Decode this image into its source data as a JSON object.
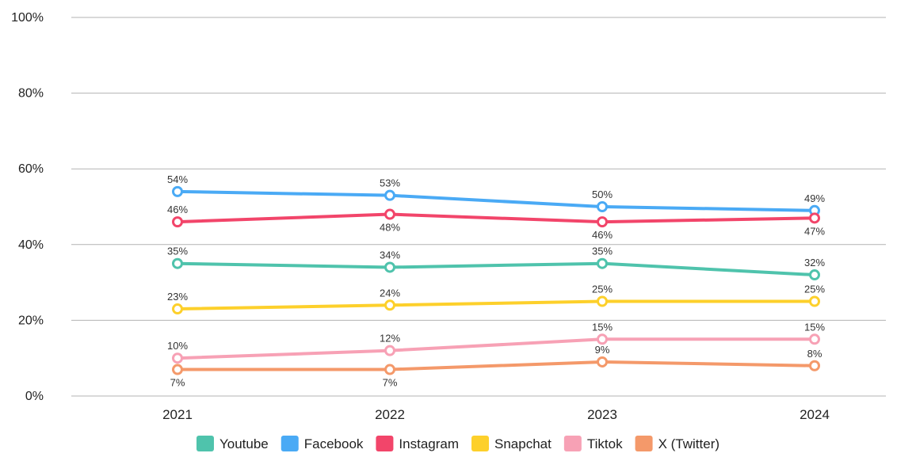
{
  "chart_data": {
    "type": "line",
    "title": "",
    "xlabel": "",
    "ylabel": "",
    "x": [
      "2021",
      "2022",
      "2023",
      "2024"
    ],
    "ylim": [
      0,
      100
    ],
    "yticks": [
      0,
      20,
      40,
      60,
      80,
      100
    ],
    "ytick_labels": [
      "0%",
      "20%",
      "40%",
      "60%",
      "80%",
      "100%"
    ],
    "grid": "horizontal",
    "legend": "bottom",
    "series": [
      {
        "name": "Youtube",
        "color": "#4fc3ac",
        "values": [
          35,
          34,
          35,
          32
        ],
        "labels": [
          "35%",
          "34%",
          "35%",
          "32%"
        ],
        "label_pos": [
          "above",
          "above",
          "above",
          "above"
        ]
      },
      {
        "name": "Facebook",
        "color": "#4aaaf5",
        "values": [
          54,
          53,
          50,
          49
        ],
        "labels": [
          "54%",
          "53%",
          "50%",
          "49%"
        ],
        "label_pos": [
          "above",
          "above",
          "above",
          "above"
        ]
      },
      {
        "name": "Instagram",
        "color": "#f2456a",
        "values": [
          46,
          48,
          46,
          47
        ],
        "labels": [
          "46%",
          "48%",
          "46%",
          "47%"
        ],
        "label_pos": [
          "above",
          "below",
          "below",
          "below"
        ]
      },
      {
        "name": "Snapchat",
        "color": "#fdd02b",
        "values": [
          23,
          24,
          25,
          25
        ],
        "labels": [
          "23%",
          "24%",
          "25%",
          "25%"
        ],
        "label_pos": [
          "above",
          "above",
          "above",
          "above"
        ]
      },
      {
        "name": "Tiktok",
        "color": "#f7a1b5",
        "values": [
          10,
          12,
          15,
          15
        ],
        "labels": [
          "10%",
          "12%",
          "15%",
          "15%"
        ],
        "label_pos": [
          "above",
          "above",
          "above",
          "above"
        ]
      },
      {
        "name": "X (Twitter)",
        "color": "#f4996a",
        "values": [
          7,
          7,
          9,
          8
        ],
        "labels": [
          "7%",
          "7%",
          "9%",
          "8%"
        ],
        "label_pos": [
          "below",
          "below",
          "above",
          "above"
        ]
      }
    ]
  }
}
